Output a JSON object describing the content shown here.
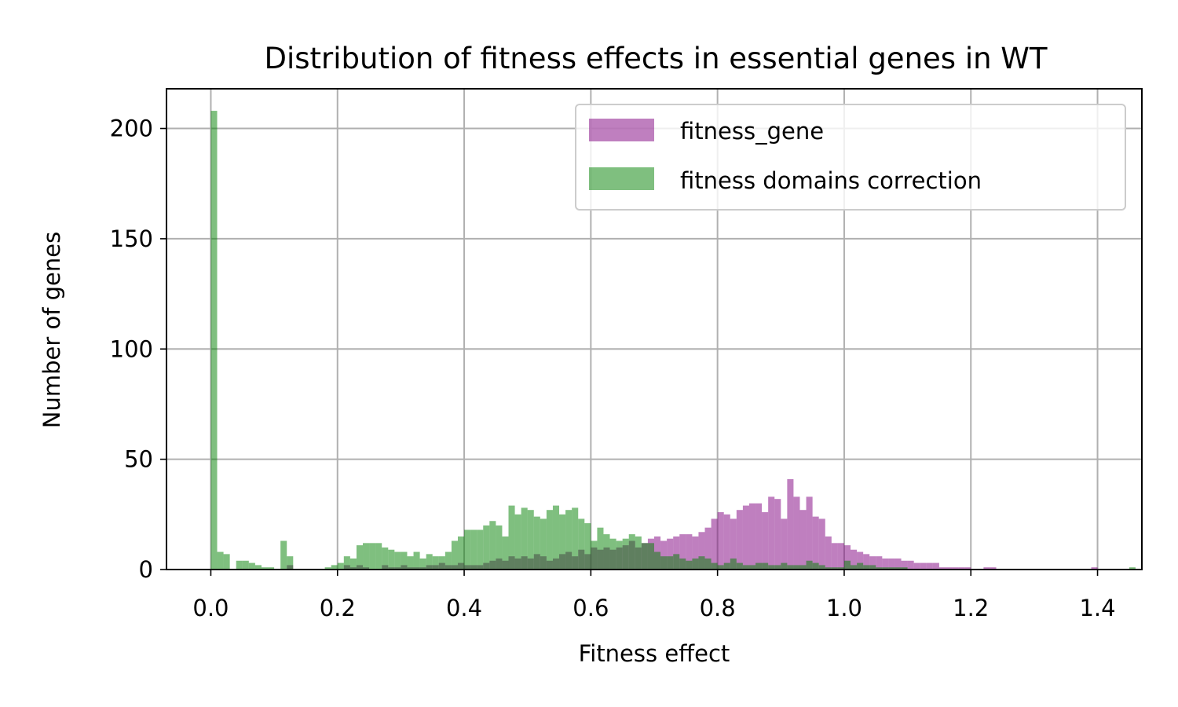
{
  "chart_data": {
    "type": "bar",
    "title": "Distribution of fitness effects in essential genes in WT",
    "xlabel": "Fitness effect",
    "ylabel": "Number of genes",
    "xlim": [
      -0.07,
      1.47
    ],
    "ylim": [
      0,
      218
    ],
    "xticks": [
      "0.0",
      "0.2",
      "0.4",
      "0.6",
      "0.8",
      "1.0",
      "1.2",
      "1.4"
    ],
    "yticks": [
      "0",
      "50",
      "100",
      "150",
      "200"
    ],
    "grid": true,
    "legend_position": "top-right",
    "bin_width": 0.01,
    "x_start": 0.0,
    "series": [
      {
        "name": "fitness_gene",
        "color": "#800080",
        "alpha": 0.5,
        "values": [
          0,
          0,
          0,
          0,
          0,
          0,
          0,
          0,
          0,
          0,
          0,
          0,
          2,
          0,
          0,
          0,
          0,
          0,
          0,
          0,
          0,
          2,
          1,
          2,
          1,
          0,
          0,
          2,
          1,
          1,
          2,
          1,
          1,
          1,
          2,
          2,
          3,
          2,
          2,
          3,
          2,
          2,
          2,
          3,
          4,
          5,
          4,
          6,
          5,
          6,
          5,
          7,
          6,
          4,
          5,
          7,
          8,
          6,
          9,
          7,
          10,
          9,
          10,
          9,
          10,
          11,
          13,
          10,
          12,
          14,
          15,
          13,
          14,
          15,
          16,
          16,
          15,
          17,
          19,
          23,
          26,
          25,
          23,
          27,
          29,
          30,
          30,
          26,
          33,
          32,
          23,
          41,
          33,
          27,
          33,
          24,
          23,
          15,
          12,
          12,
          11,
          9,
          8,
          7,
          6,
          6,
          5,
          5,
          5,
          4,
          4,
          3,
          3,
          3,
          3,
          1,
          1,
          1,
          1,
          1,
          0,
          0,
          1,
          1,
          0,
          0,
          0,
          0,
          0,
          0,
          0,
          0,
          0,
          0,
          0,
          0,
          0,
          0,
          0,
          1
        ]
      },
      {
        "name": "fitness domains correction",
        "color": "#008000",
        "alpha": 0.5,
        "values": [
          208,
          8,
          7,
          0,
          4,
          4,
          3,
          2,
          1,
          1,
          0,
          13,
          6,
          0,
          0,
          0,
          0,
          0,
          1,
          2,
          3,
          6,
          5,
          11,
          12,
          12,
          12,
          10,
          9,
          8,
          8,
          6,
          8,
          5,
          7,
          6,
          6,
          8,
          13,
          15,
          18,
          18,
          18,
          20,
          22,
          20,
          15,
          29,
          25,
          28,
          27,
          24,
          23,
          27,
          29,
          25,
          27,
          28,
          23,
          21,
          13,
          19,
          16,
          14,
          13,
          14,
          16,
          15,
          12,
          12,
          8,
          6,
          6,
          7,
          5,
          4,
          5,
          6,
          5,
          3,
          2,
          3,
          5,
          3,
          2,
          2,
          3,
          3,
          2,
          2,
          3,
          2,
          2,
          2,
          4,
          3,
          2,
          1,
          1,
          1,
          4,
          2,
          3,
          2,
          2,
          1,
          1,
          1,
          1,
          1,
          0,
          0,
          0,
          0,
          0,
          0,
          0,
          0,
          0,
          0,
          0,
          0,
          0,
          0,
          0,
          0,
          0,
          0,
          0,
          0,
          0,
          0,
          0,
          0,
          0,
          0,
          0,
          0,
          0,
          0,
          0,
          0,
          0,
          0,
          0,
          1
        ]
      }
    ]
  }
}
